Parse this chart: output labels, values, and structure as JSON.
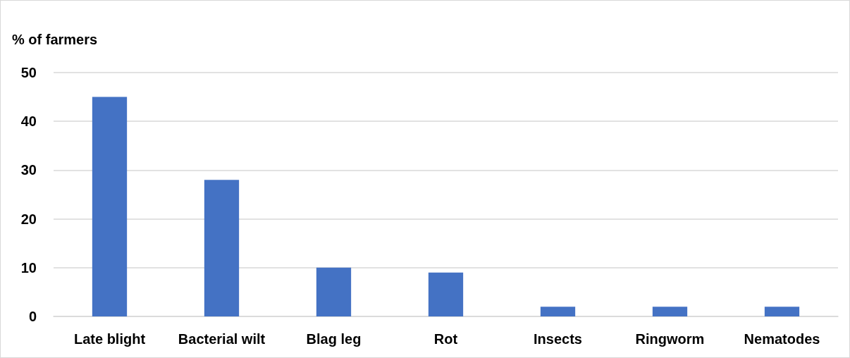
{
  "chart_data": {
    "type": "bar",
    "ylabel": "% of farmers",
    "categories": [
      "Late blight",
      "Bacterial wilt",
      "Blag leg",
      "Rot",
      "Insects",
      "Ringworm",
      "Nematodes"
    ],
    "values": [
      45,
      28,
      10,
      9,
      2,
      2,
      2
    ],
    "color": "#4472c4",
    "ylim": [
      0,
      50
    ],
    "yticks": [
      0,
      10,
      20,
      30,
      40,
      50
    ],
    "grid": "y"
  }
}
